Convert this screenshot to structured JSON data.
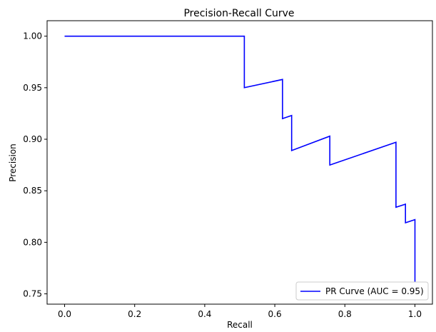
{
  "chart_data": {
    "type": "line",
    "title": "Precision-Recall Curve",
    "xlabel": "Recall",
    "ylabel": "Precision",
    "xlim": [
      -0.05,
      1.05
    ],
    "ylim": [
      0.74,
      1.015
    ],
    "x_ticks": [
      0.0,
      0.2,
      0.4,
      0.6,
      0.8,
      1.0
    ],
    "x_tick_labels": [
      "0.0",
      "0.2",
      "0.4",
      "0.6",
      "0.8",
      "1.0"
    ],
    "y_ticks": [
      0.75,
      0.8,
      0.85,
      0.9,
      0.95,
      1.0
    ],
    "y_tick_labels": [
      "0.75",
      "0.80",
      "0.85",
      "0.90",
      "0.95",
      "1.00"
    ],
    "grid": false,
    "legend_position": "lower-right",
    "series": [
      {
        "name": "PR Curve (AUC = 0.95)",
        "color": "#0000ff",
        "x": [
          0.0,
          0.513,
          0.513,
          0.622,
          0.622,
          0.648,
          0.648,
          0.757,
          0.757,
          0.946,
          0.946,
          0.973,
          0.973,
          1.0,
          1.0
        ],
        "y": [
          1.0,
          1.0,
          0.95,
          0.958,
          0.92,
          0.923,
          0.889,
          0.903,
          0.875,
          0.897,
          0.834,
          0.837,
          0.819,
          0.822,
          0.745
        ]
      }
    ]
  }
}
